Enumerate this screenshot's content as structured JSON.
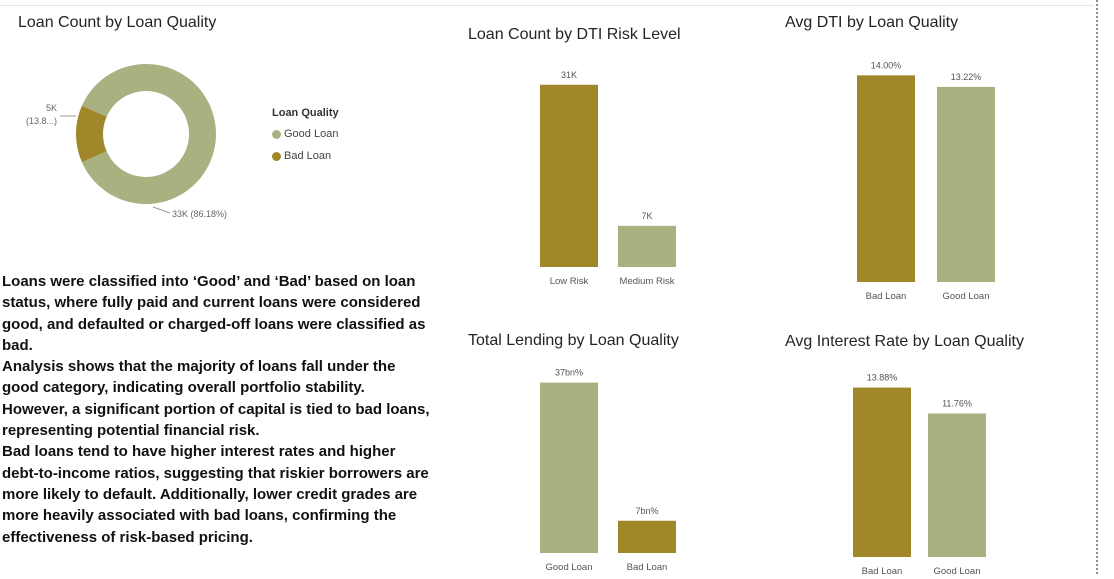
{
  "colors": {
    "good": "#aab181",
    "bad": "#a0872a"
  },
  "donut": {
    "title": "Loan Count by Loan Quality",
    "legend_title": "Loan Quality",
    "legend": [
      "Good Loan",
      "Bad Loan"
    ],
    "label_bad_1": "5K",
    "label_bad_2": "(13.8...)",
    "label_good": "33K (86.18%)"
  },
  "notes": [
    "Loans were classified into ‘Good’ and ‘Bad’ based on loan status, where fully paid and current loans were considered good, and defaulted or charged-off loans were classified as bad.",
    "Analysis shows that the majority of loans fall under the good category, indicating overall portfolio stability. However, a significant portion of capital is tied to bad loans, representing potential financial risk.",
    "Bad loans tend to have higher interest rates and higher debt-to-income ratios, suggesting that riskier borrowers are more likely to default. Additionally, lower credit grades are more heavily associated with bad loans, confirming the effectiveness of risk-based pricing."
  ],
  "chart_data": [
    {
      "type": "pie",
      "title": "Loan Count by Loan Quality",
      "categories": [
        "Good Loan",
        "Bad Loan"
      ],
      "values": [
        33,
        5
      ],
      "percent": [
        86.18,
        13.82
      ],
      "labels": [
        "33K (86.18%)",
        "5K (13.8...)"
      ],
      "legend": "right"
    },
    {
      "type": "bar",
      "title": "Loan Count by DTI Risk Level",
      "categories": [
        "Low Risk",
        "Medium Risk"
      ],
      "values": [
        31,
        7
      ],
      "labels": [
        "31K",
        "7K"
      ],
      "ylim": [
        0,
        33
      ]
    },
    {
      "type": "bar",
      "title": "Avg DTI by Loan Quality",
      "categories": [
        "Bad Loan",
        "Good Loan"
      ],
      "values": [
        14.0,
        13.22
      ],
      "labels": [
        "14.00%",
        "13.22%"
      ],
      "ylim": [
        0,
        14.5
      ]
    },
    {
      "type": "bar",
      "title": "Total Lending by Loan Quality",
      "categories": [
        "Good Loan",
        "Bad Loan"
      ],
      "values": [
        37,
        7
      ],
      "labels": [
        "37bn%",
        "7bn%"
      ],
      "ylim": [
        0,
        38
      ]
    },
    {
      "type": "bar",
      "title": "Avg Interest Rate by Loan Quality",
      "categories": [
        "Bad Loan",
        "Good Loan"
      ],
      "values": [
        13.88,
        11.76
      ],
      "labels": [
        "13.88%",
        "11.76%"
      ],
      "ylim": [
        0,
        14.5
      ]
    }
  ]
}
